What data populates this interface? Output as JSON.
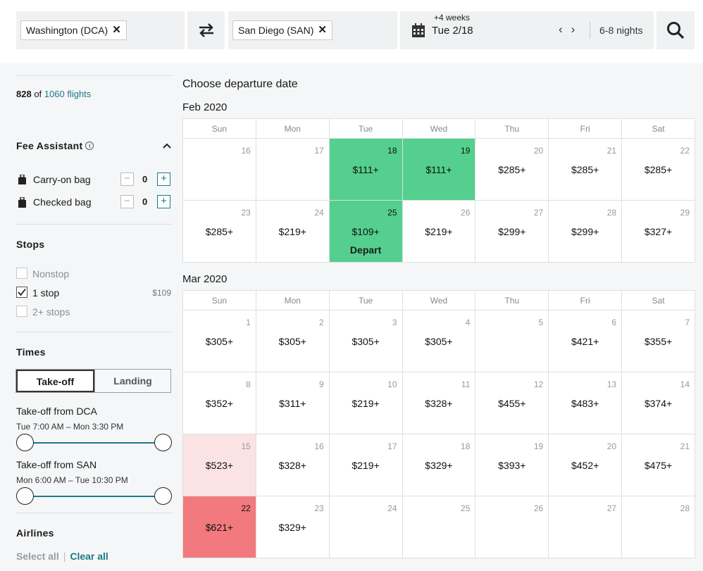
{
  "search": {
    "origin": "Washington (DCA)",
    "destination": "San Diego (SAN)",
    "date_note": "+4 weeks",
    "date": "Tue 2/18",
    "nights": "6-8 nights",
    "icons": [
      "swap-icon",
      "calendar-icon",
      "chevron-left-icon",
      "chevron-right-icon",
      "search-icon"
    ]
  },
  "sidebar": {
    "count_shown": "828",
    "count_of": "of",
    "count_total": "1060 flights",
    "fee_assistant": {
      "title": "Fee Assistant",
      "info": "i",
      "bags": [
        {
          "label": "Carry-on bag",
          "value": "0"
        },
        {
          "label": "Checked bag",
          "value": "0"
        }
      ]
    },
    "stops": {
      "title": "Stops",
      "options": [
        {
          "label": "Nonstop",
          "checked": false,
          "price": ""
        },
        {
          "label": "1 stop",
          "checked": true,
          "price": "$109"
        },
        {
          "label": "2+ stops",
          "checked": false,
          "price": ""
        }
      ]
    },
    "times": {
      "title": "Times",
      "tabs": [
        "Take-off",
        "Landing"
      ],
      "active_tab": "Take-off",
      "ranges": [
        {
          "title": "Take-off from DCA",
          "range": "Tue 7:00 AM – Mon 3:30 PM"
        },
        {
          "title": "Take-off from SAN",
          "range": "Mon 6:00 AM – Tue 10:30 PM"
        }
      ]
    },
    "airlines": {
      "title": "Airlines",
      "select_all": "Select all",
      "separator": "|",
      "clear_all": "Clear all"
    }
  },
  "calendar": {
    "heading": "Choose departure date",
    "weekdays": [
      "Sun",
      "Mon",
      "Tue",
      "Wed",
      "Thu",
      "Fri",
      "Sat"
    ],
    "months": [
      {
        "label": "Feb 2020",
        "weeks": [
          [
            {
              "d": "16",
              "p": ""
            },
            {
              "d": "17",
              "p": ""
            },
            {
              "d": "18",
              "p": "$111+",
              "s": "g"
            },
            {
              "d": "19",
              "p": "$111+",
              "s": "g"
            },
            {
              "d": "20",
              "p": "$285+"
            },
            {
              "d": "21",
              "p": "$285+"
            },
            {
              "d": "22",
              "p": "$285+"
            }
          ],
          [
            {
              "d": "23",
              "p": "$285+"
            },
            {
              "d": "24",
              "p": "$219+"
            },
            {
              "d": "25",
              "p": "$109+",
              "s": "g",
              "tag": "Depart"
            },
            {
              "d": "26",
              "p": "$219+"
            },
            {
              "d": "27",
              "p": "$299+"
            },
            {
              "d": "28",
              "p": "$299+"
            },
            {
              "d": "29",
              "p": "$327+"
            }
          ]
        ]
      },
      {
        "label": "Mar 2020",
        "weeks": [
          [
            {
              "d": "1",
              "p": "$305+"
            },
            {
              "d": "2",
              "p": "$305+"
            },
            {
              "d": "3",
              "p": "$305+"
            },
            {
              "d": "4",
              "p": "$305+"
            },
            {
              "d": "5",
              "p": ""
            },
            {
              "d": "6",
              "p": "$421+"
            },
            {
              "d": "7",
              "p": "$355+"
            }
          ],
          [
            {
              "d": "8",
              "p": "$352+"
            },
            {
              "d": "9",
              "p": "$311+"
            },
            {
              "d": "10",
              "p": "$219+"
            },
            {
              "d": "11",
              "p": "$328+"
            },
            {
              "d": "12",
              "p": "$455+"
            },
            {
              "d": "13",
              "p": "$483+"
            },
            {
              "d": "14",
              "p": "$374+"
            }
          ],
          [
            {
              "d": "15",
              "p": "$523+",
              "s": "p"
            },
            {
              "d": "16",
              "p": "$328+"
            },
            {
              "d": "17",
              "p": "$219+"
            },
            {
              "d": "18",
              "p": "$329+"
            },
            {
              "d": "19",
              "p": "$393+"
            },
            {
              "d": "20",
              "p": "$452+"
            },
            {
              "d": "21",
              "p": "$475+"
            }
          ],
          [
            {
              "d": "22",
              "p": "$621+",
              "s": "r"
            },
            {
              "d": "23",
              "p": "$329+"
            },
            {
              "d": "24",
              "p": ""
            },
            {
              "d": "25",
              "p": ""
            },
            {
              "d": "26",
              "p": ""
            },
            {
              "d": "27",
              "p": ""
            },
            {
              "d": "28",
              "p": ""
            }
          ]
        ]
      }
    ]
  },
  "colors": {
    "accent": "#1b7a88",
    "cheap": "#55cf8d",
    "pricey": "#fbe3e4",
    "most_expensive": "#f2797d"
  }
}
